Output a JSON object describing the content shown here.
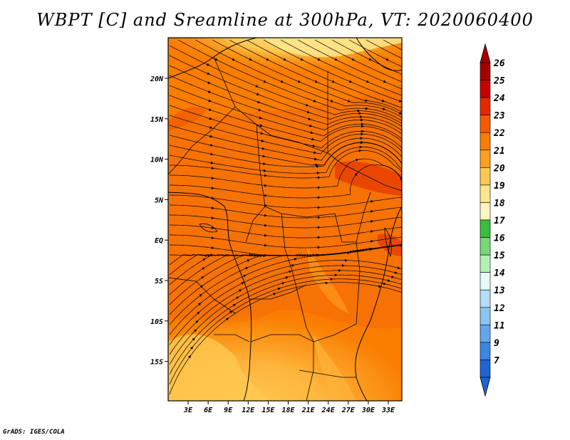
{
  "title": "WBPT [C] and Sreamline at 300hPa, VT: 2020060400",
  "credit": "GrADS: IGES/COLA",
  "map": {
    "type": "filled-contour-streamline-map",
    "variable": "WBPT [C]",
    "level": "300hPa",
    "valid_time": "2020060400",
    "lon_ticks": [
      "3E",
      "6E",
      "9E",
      "12E",
      "15E",
      "18E",
      "21E",
      "24E",
      "27E",
      "30E",
      "33E"
    ],
    "lat_ticks": [
      "20N",
      "15N",
      "10N",
      "5N",
      "EQ",
      "5S",
      "10S",
      "15S"
    ],
    "regions": {
      "dominant": "22-23 C over most of the domain",
      "warm_patches": "24-25 C patches near 8N 26E-33E and 2N 33E",
      "cooler": "19-21 C in the far south (12S-19S) and far north (near 23N)"
    }
  },
  "colorbar": {
    "labels": [
      "26",
      "25",
      "24",
      "23",
      "22",
      "21",
      "20",
      "19",
      "18",
      "17",
      "16",
      "15",
      "14",
      "13",
      "12",
      "11",
      "9",
      "7"
    ],
    "colors": [
      "#a50000",
      "#c80000",
      "#e62800",
      "#f55a00",
      "#fa7d00",
      "#ffa01e",
      "#ffc850",
      "#ffe68c",
      "#fff5c0",
      "#3cbe3c",
      "#78d878",
      "#b4f0b4",
      "#e6fafa",
      "#b4dcf5",
      "#8cc3f0",
      "#64a5eb",
      "#3c87e1",
      "#1e64d2"
    ]
  }
}
